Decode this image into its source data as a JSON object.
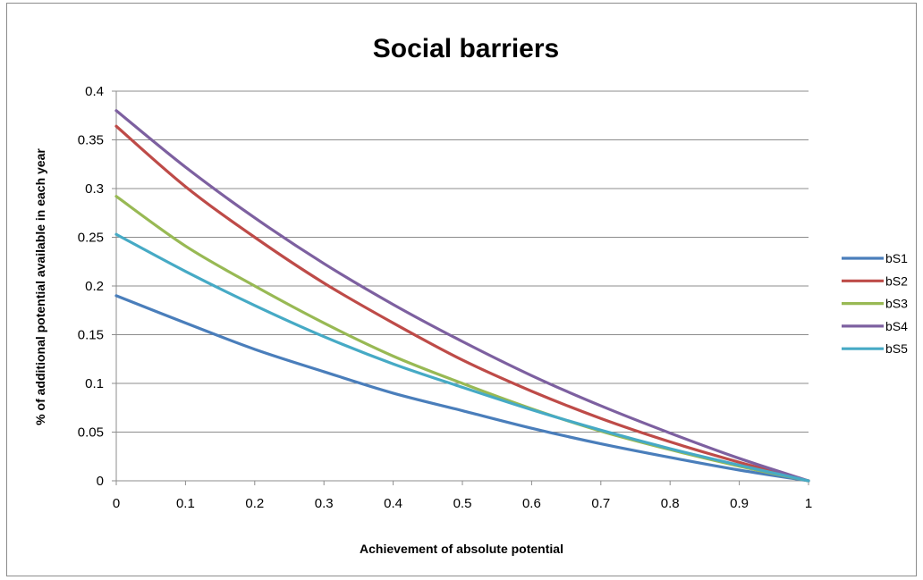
{
  "chart_data": {
    "type": "line",
    "title": "Social barriers",
    "xlabel": "Achievement of absolute potential",
    "ylabel": "% of additional  potential available  in each year",
    "xlim": [
      0,
      1
    ],
    "ylim": [
      0,
      0.4
    ],
    "x_ticks": [
      "0",
      "0.1",
      "0.2",
      "0.3",
      "0.4",
      "0.5",
      "0.6",
      "0.7",
      "0.8",
      "0.9",
      "1"
    ],
    "y_ticks": [
      "0",
      "0.05",
      "0.1",
      "0.15",
      "0.2",
      "0.25",
      "0.3",
      "0.35",
      "0.4"
    ],
    "grid": "horizontal",
    "legend_position": "right",
    "x": [
      0,
      0.1,
      0.2,
      0.3,
      0.4,
      0.5,
      0.6,
      0.7,
      0.8,
      0.9,
      1
    ],
    "series": [
      {
        "name": "bS1",
        "color": "#4a7ebb",
        "values": [
          0.19,
          0.162,
          0.135,
          0.112,
          0.09,
          0.072,
          0.054,
          0.038,
          0.024,
          0.011,
          0
        ]
      },
      {
        "name": "bS2",
        "color": "#be4b48",
        "values": [
          0.364,
          0.302,
          0.25,
          0.203,
          0.162,
          0.124,
          0.092,
          0.064,
          0.04,
          0.019,
          0
        ]
      },
      {
        "name": "bS3",
        "color": "#98b954",
        "values": [
          0.292,
          0.241,
          0.2,
          0.162,
          0.128,
          0.1,
          0.074,
          0.051,
          0.032,
          0.015,
          0
        ]
      },
      {
        "name": "bS4",
        "color": "#7d60a0",
        "values": [
          0.38,
          0.322,
          0.27,
          0.223,
          0.181,
          0.143,
          0.108,
          0.077,
          0.049,
          0.023,
          0
        ]
      },
      {
        "name": "bS5",
        "color": "#46aac5",
        "values": [
          0.253,
          0.215,
          0.18,
          0.148,
          0.12,
          0.096,
          0.073,
          0.052,
          0.033,
          0.016,
          0
        ]
      }
    ]
  }
}
